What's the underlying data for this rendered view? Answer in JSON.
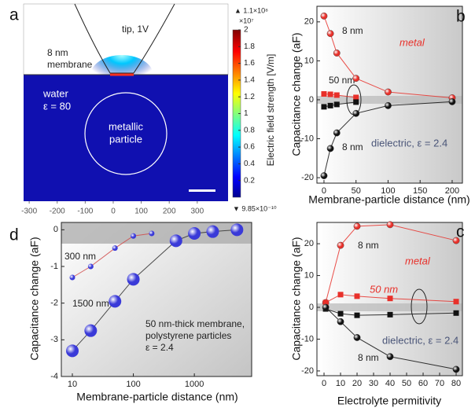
{
  "chart_data": [
    {
      "type": "field-map",
      "panel": "a",
      "annotations": [
        "tip, 1V",
        "8 nm",
        "membrane",
        "water",
        "ε = 80",
        "metallic",
        "particle"
      ],
      "xlim": [
        -320,
        410
      ],
      "xticks": [
        -300,
        -200,
        -100,
        0,
        100,
        200,
        300
      ],
      "colorbar": {
        "label": "Electric field strength [V/m]",
        "lim": [
          0,
          2
        ],
        "ticks": [
          0.2,
          0.4,
          0.6,
          0.8,
          1,
          1.2,
          1.4,
          1.6,
          1.8,
          2
        ],
        "max_label": "▲ 1.1×10⁸",
        "scale_label": "×10⁷",
        "min_label": "▼ 9.85×10⁻¹⁰"
      }
    },
    {
      "type": "line",
      "panel": "b",
      "xlabel": "Membrane-particle distance (nm)",
      "ylabel": "Capacitance change (aF)",
      "annotations": [
        "8 nm",
        "metal",
        "50 nm",
        "8 nm",
        "dielectric, ε = 2.4"
      ],
      "xlim": [
        -11,
        216
      ],
      "xticks": [
        0,
        50,
        100,
        150,
        200
      ],
      "ylim": [
        -21.4,
        24
      ],
      "yticks": [
        -20,
        -10,
        0,
        10,
        20
      ],
      "series": [
        {
          "color": "#e8302a",
          "marker": "circle",
          "x": [
            0,
            10,
            20,
            50,
            100,
            200
          ],
          "values": [
            21.5,
            17,
            12,
            5.5,
            2,
            0.5
          ]
        },
        {
          "color": "#e8302a",
          "marker": "square",
          "x": [
            0,
            10,
            20,
            50
          ],
          "values": [
            1.5,
            1.4,
            1.2,
            0.6
          ]
        },
        {
          "color": "#111111",
          "marker": "square",
          "x": [
            0,
            10,
            20,
            50
          ],
          "values": [
            -1.8,
            -1.5,
            -1.2,
            -0.6
          ]
        },
        {
          "color": "#111111",
          "marker": "circle",
          "x": [
            0,
            10,
            20,
            50,
            100,
            200
          ],
          "values": [
            -19.5,
            -12.5,
            -8.5,
            -3.5,
            -1.5,
            -0.5
          ]
        }
      ]
    },
    {
      "type": "line",
      "panel": "c",
      "xlabel": "Electrolyte permitivity",
      "ylabel": "Capacitance change (aF)",
      "annotations": [
        "8 nm",
        "metal",
        "50 nm",
        "dielectric, ε = 2.4",
        "8 nm"
      ],
      "xlim": [
        -4.3,
        83.8
      ],
      "xticks": [
        0,
        10,
        20,
        30,
        40,
        50,
        60,
        70,
        80
      ],
      "ylim": [
        -21.5,
        26.7
      ],
      "yticks": [
        -20,
        -10,
        0,
        10,
        20
      ],
      "series": [
        {
          "color": "#e8302a",
          "marker": "circle",
          "x": [
            1,
            10,
            20,
            40,
            80
          ],
          "values": [
            1.5,
            19.5,
            25.5,
            26,
            21
          ]
        },
        {
          "color": "#e8302a",
          "marker": "square",
          "x": [
            1,
            10,
            20,
            40,
            80
          ],
          "values": [
            1.5,
            4,
            3.5,
            2.8,
            1.8
          ]
        },
        {
          "color": "#111111",
          "marker": "square",
          "x": [
            1,
            10,
            20,
            40,
            80
          ],
          "values": [
            -0.5,
            -2,
            -2.5,
            -2.3,
            -1.8
          ]
        },
        {
          "color": "#111111",
          "marker": "circle",
          "x": [
            1,
            10,
            20,
            40,
            80
          ],
          "values": [
            0,
            -4.5,
            -9.5,
            -15.5,
            -19.5
          ]
        }
      ]
    },
    {
      "type": "line",
      "panel": "d",
      "xscale": "log",
      "xlabel": "Membrane-particle distance (nm)",
      "ylabel": "Capacitance change (aF)",
      "annotations": [
        "300 nm",
        "1500 nm",
        "50 nm-thick membrane,",
        "polystyrene particles",
        "ε = 2.4"
      ],
      "xlim": [
        6.6,
        8700
      ],
      "xticks": [
        10,
        100,
        1000
      ],
      "ylim": [
        -4,
        0.2
      ],
      "yticks": [
        0,
        -1,
        -2,
        -3,
        -4
      ],
      "series": [
        {
          "color": "#3a3ad8",
          "line_color": "#d04a4a",
          "marker": "sphere",
          "x": [
            10,
            20,
            50,
            100,
            200
          ],
          "values": [
            -1.3,
            -1.0,
            -0.5,
            -0.17,
            -0.1
          ]
        },
        {
          "color": "#3a3ad8",
          "line_color": "#333333",
          "marker": "sphere",
          "x": [
            10,
            20,
            50,
            100,
            500,
            1000,
            2000,
            5000
          ],
          "values": [
            -3.3,
            -2.75,
            -1.95,
            -1.35,
            -0.3,
            -0.1,
            -0.05,
            0
          ]
        }
      ]
    }
  ]
}
